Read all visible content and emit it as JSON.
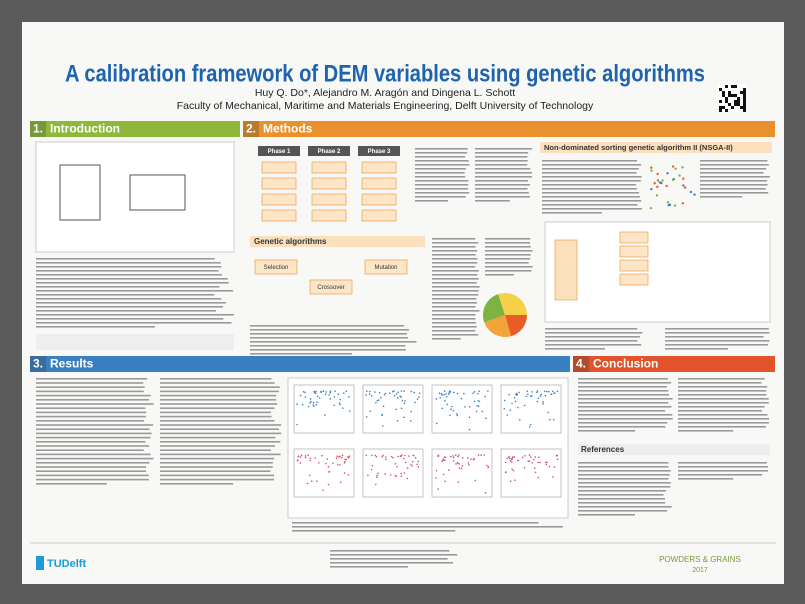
{
  "header": {
    "title": "A calibration framework of DEM variables using genetic algorithms",
    "authors": "Huy Q. Do*, Alejandro M. Aragón and Dingena L. Schott",
    "affiliation": "Faculty of Mechanical, Maritime and Materials Engineering, Delft University of Technology"
  },
  "sections": [
    {
      "number": "1.",
      "title": "Introduction"
    },
    {
      "number": "2.",
      "title": "Methods"
    },
    {
      "number": "3.",
      "title": "Results"
    },
    {
      "number": "4.",
      "title": "Conclusion"
    }
  ],
  "methods": {
    "phases": [
      "Phase 1",
      "Phase 2",
      "Phase 3"
    ],
    "genetic_algorithms": "Genetic algorithms",
    "nsga": "Non-dominated sorting genetic algorithm II (NSGA-II)",
    "operators": [
      "Selection",
      "Crossover",
      "Mutation"
    ]
  },
  "conclusion": {
    "references": "References"
  },
  "footer": {
    "logo": "TUDelft",
    "conference": "POWDERS & GRAINS",
    "year": "2017"
  }
}
